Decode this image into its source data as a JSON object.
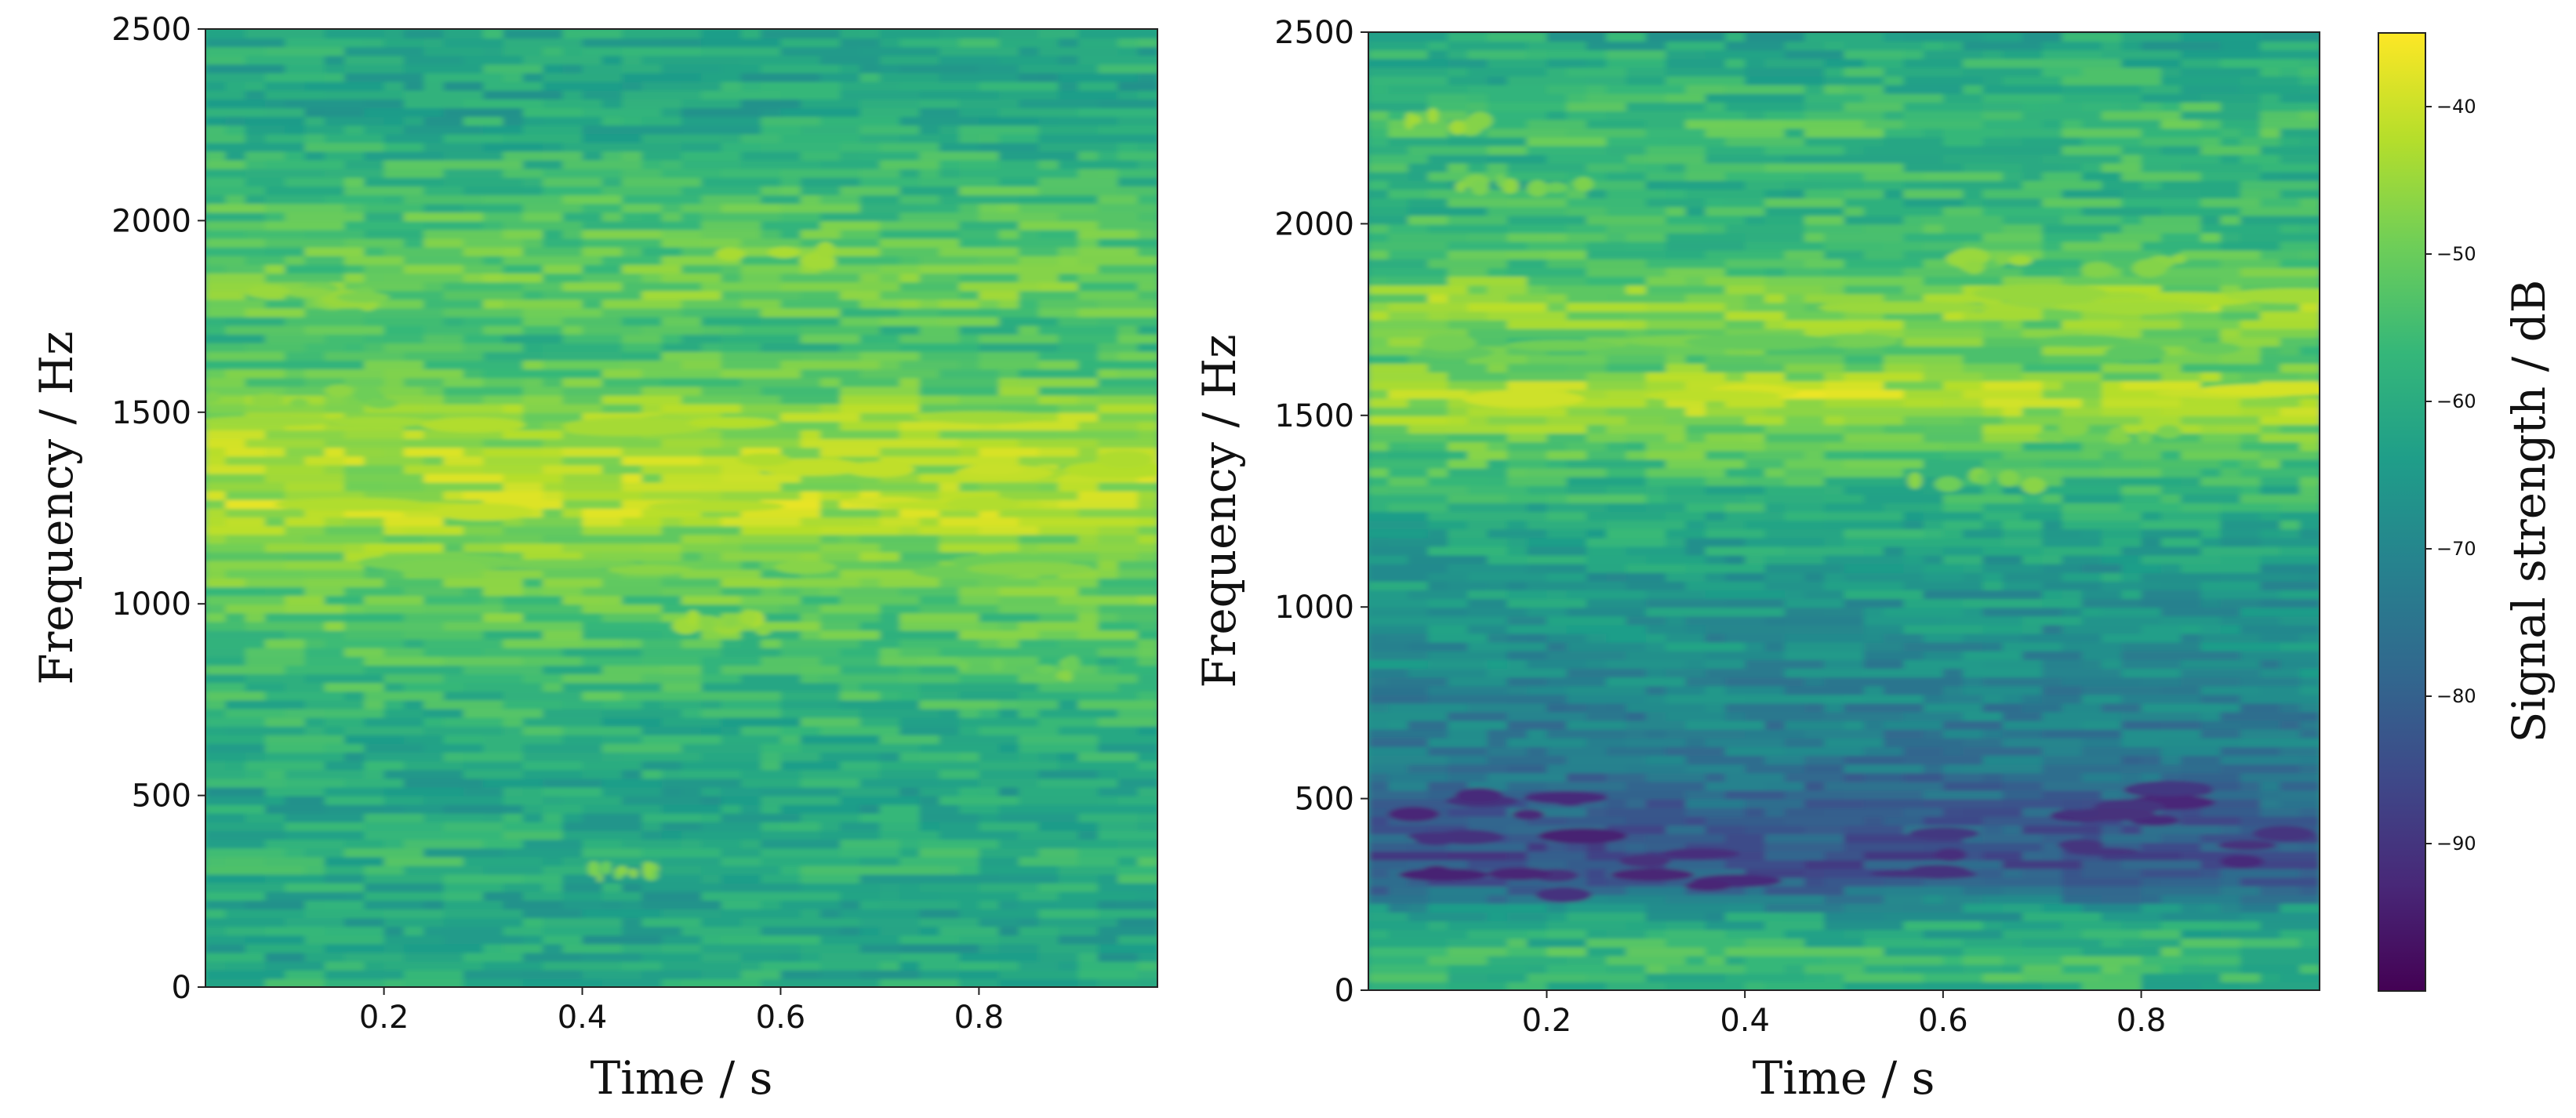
{
  "chart_data": [
    {
      "type": "heatmap",
      "xlabel": "Time / s",
      "ylabel": "Frequency / Hz",
      "xlim": [
        0.02,
        0.98
      ],
      "ylim": [
        0,
        2500
      ],
      "xticks": [
        0.2,
        0.4,
        0.6,
        0.8
      ],
      "xtick_labels": [
        "0.2",
        "0.4",
        "0.6",
        "0.8"
      ],
      "yticks": [
        0,
        500,
        1000,
        1500,
        2000,
        2500
      ],
      "ytick_labels": [
        "0",
        "500",
        "1000",
        "1500",
        "2000",
        "2500"
      ],
      "colormap": "viridis",
      "value_range_db": [
        -100,
        -35
      ],
      "background_level_db": -60,
      "frequency_profile": {
        "frequency_hz": [
          0,
          100,
          250,
          300,
          500,
          800,
          950,
          1100,
          1250,
          1350,
          1480,
          1550,
          1700,
          1800,
          1920,
          2100,
          2300,
          2500
        ],
        "mean_strength_db": [
          -60,
          -62,
          -62,
          -58,
          -62,
          -56,
          -52,
          -50,
          -43,
          -44,
          -45,
          -50,
          -56,
          -50,
          -52,
          -56,
          -62,
          -60
        ]
      },
      "bright_bands": [
        {
          "frequency_hz": 1260,
          "time_start_s": 0.02,
          "time_end_s": 0.98,
          "strength_db": -41
        },
        {
          "frequency_hz": 1360,
          "time_start_s": 0.3,
          "time_end_s": 0.98,
          "strength_db": -42
        },
        {
          "frequency_hz": 1470,
          "time_start_s": 0.02,
          "time_end_s": 0.98,
          "strength_db": -44
        },
        {
          "frequency_hz": 1540,
          "time_start_s": 0.02,
          "time_end_s": 0.2,
          "strength_db": -48
        },
        {
          "frequency_hz": 1100,
          "time_start_s": 0.1,
          "time_end_s": 0.95,
          "strength_db": -48
        },
        {
          "frequency_hz": 950,
          "time_start_s": 0.45,
          "time_end_s": 0.6,
          "strength_db": -45
        },
        {
          "frequency_hz": 1800,
          "time_start_s": 0.02,
          "time_end_s": 0.3,
          "strength_db": -47
        },
        {
          "frequency_hz": 1910,
          "time_start_s": 0.52,
          "time_end_s": 0.7,
          "strength_db": -45
        },
        {
          "frequency_hz": 830,
          "time_start_s": 0.78,
          "time_end_s": 0.9,
          "strength_db": -48
        },
        {
          "frequency_hz": 300,
          "time_start_s": 0.4,
          "time_end_s": 0.48,
          "strength_db": -48
        }
      ]
    },
    {
      "type": "heatmap",
      "xlabel": "Time / s",
      "ylabel": "Frequency / Hz",
      "xlim": [
        0.02,
        0.98
      ],
      "ylim": [
        0,
        2500
      ],
      "xticks": [
        0.2,
        0.4,
        0.6,
        0.8
      ],
      "xtick_labels": [
        "0.2",
        "0.4",
        "0.6",
        "0.8"
      ],
      "yticks": [
        0,
        500,
        1000,
        1500,
        2000,
        2500
      ],
      "ytick_labels": [
        "0",
        "500",
        "1000",
        "1500",
        "2000",
        "2500"
      ],
      "colormap": "viridis",
      "value_range_db": [
        -100,
        -35
      ],
      "background_level_db": -65,
      "frequency_profile": {
        "frequency_hz": [
          0,
          100,
          200,
          280,
          350,
          450,
          550,
          700,
          900,
          1100,
          1300,
          1450,
          1550,
          1650,
          1800,
          1900,
          2100,
          2250,
          2500
        ],
        "mean_strength_db": [
          -58,
          -56,
          -64,
          -80,
          -84,
          -80,
          -76,
          -72,
          -68,
          -64,
          -58,
          -50,
          -42,
          -52,
          -46,
          -54,
          -58,
          -55,
          -62
        ]
      },
      "bright_bands": [
        {
          "frequency_hz": 1550,
          "time_start_s": 0.02,
          "time_end_s": 0.98,
          "strength_db": -40
        },
        {
          "frequency_hz": 1800,
          "time_start_s": 0.02,
          "time_end_s": 0.98,
          "strength_db": -44
        },
        {
          "frequency_hz": 1680,
          "time_start_s": 0.1,
          "time_end_s": 0.98,
          "strength_db": -50
        },
        {
          "frequency_hz": 1900,
          "time_start_s": 0.62,
          "time_end_s": 0.85,
          "strength_db": -46
        },
        {
          "frequency_hz": 2110,
          "time_start_s": 0.1,
          "time_end_s": 0.25,
          "strength_db": -48
        },
        {
          "frequency_hz": 2270,
          "time_start_s": 0.02,
          "time_end_s": 0.15,
          "strength_db": -46
        },
        {
          "frequency_hz": 1330,
          "time_start_s": 0.55,
          "time_end_s": 0.7,
          "strength_db": -48
        },
        {
          "frequency_hz": 1450,
          "time_start_s": 0.7,
          "time_end_s": 0.85,
          "strength_db": -48
        }
      ],
      "dark_regions": [
        {
          "frequency_hz": 300,
          "time_start_s": 0.05,
          "time_end_s": 0.45,
          "strength_db": -92
        },
        {
          "frequency_hz": 450,
          "time_start_s": 0.05,
          "time_end_s": 0.25,
          "strength_db": -92
        },
        {
          "frequency_hz": 360,
          "time_start_s": 0.55,
          "time_end_s": 0.95,
          "strength_db": -90
        },
        {
          "frequency_hz": 480,
          "time_start_s": 0.7,
          "time_end_s": 0.85,
          "strength_db": -91
        }
      ]
    }
  ],
  "colorbar": {
    "label": "Signal strength / dB",
    "range_db": [
      -100,
      -35
    ],
    "ticks": [
      -40,
      -50,
      -60,
      -70,
      -80,
      -90
    ],
    "tick_labels": [
      "−40",
      "−50",
      "−60",
      "−70",
      "−80",
      "−90"
    ],
    "colormap": "viridis"
  },
  "colors": {
    "viridis_stops": [
      "#440154",
      "#482878",
      "#3e4989",
      "#31688e",
      "#26828e",
      "#1f9e89",
      "#35b779",
      "#6ece58",
      "#b5de2b",
      "#fde725"
    ]
  }
}
